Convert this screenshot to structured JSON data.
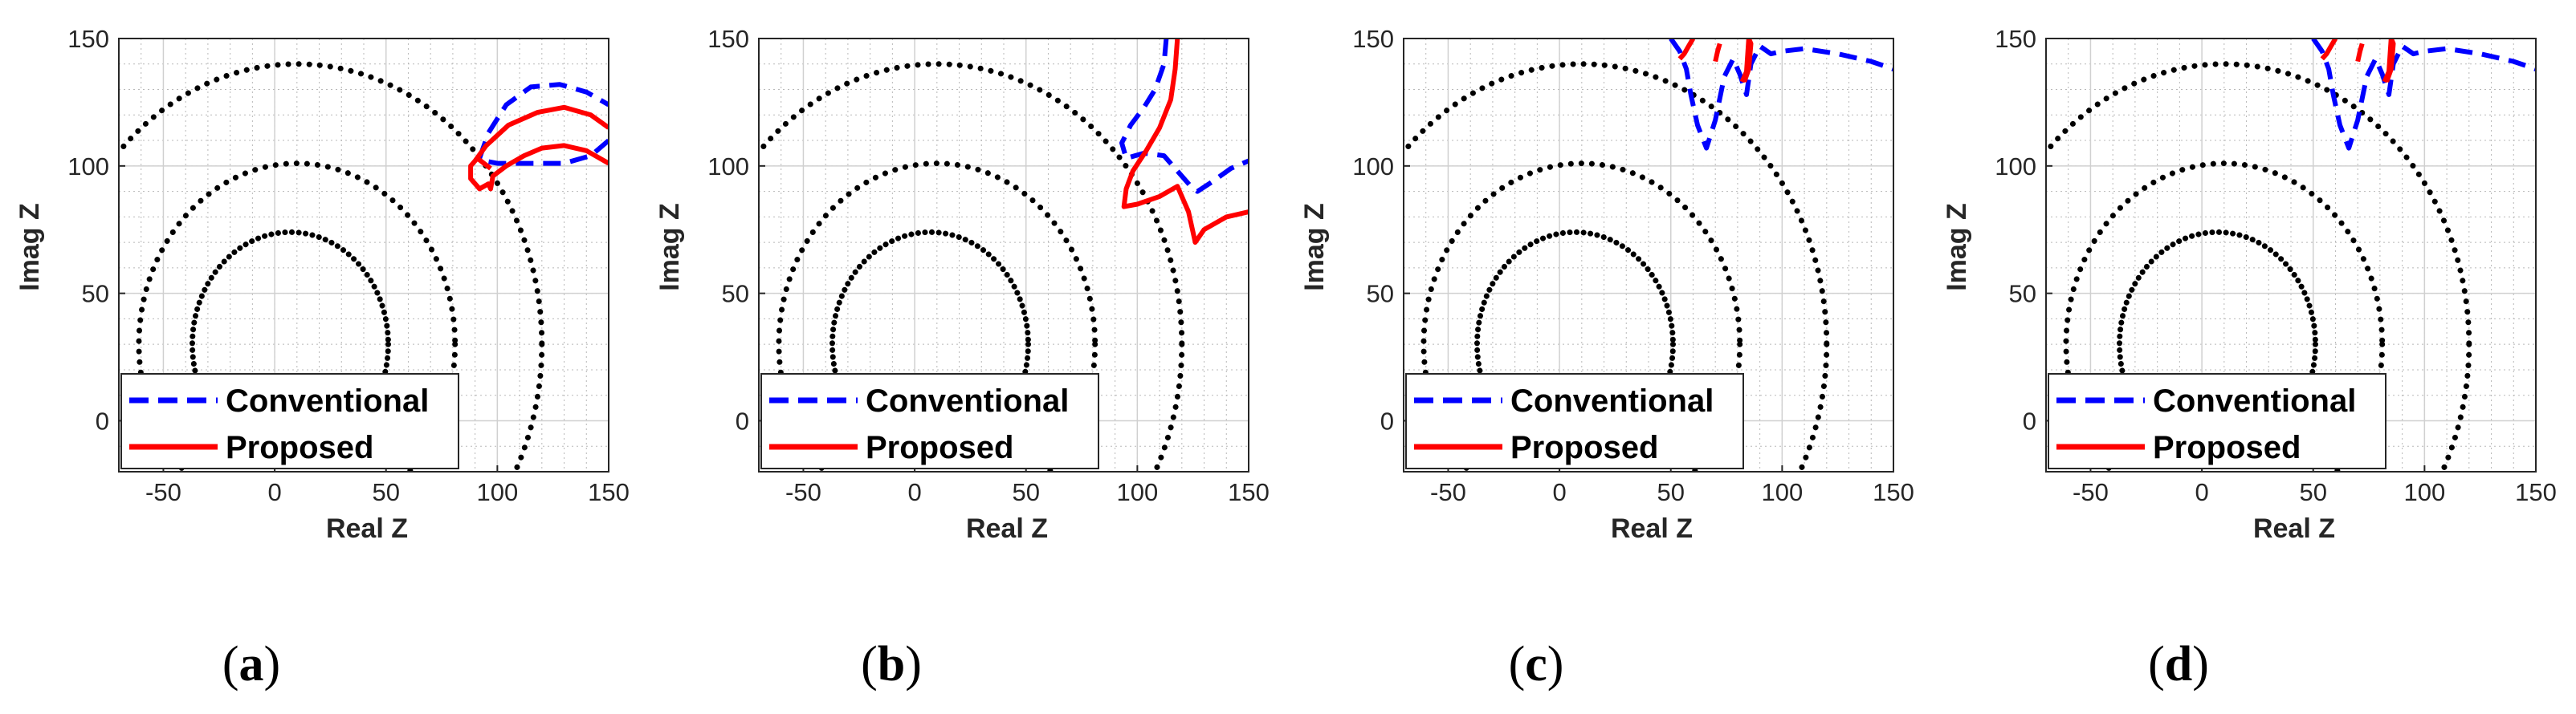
{
  "colors": {
    "conventional": "#0000ff",
    "proposed": "#ff0000",
    "circles": "#000000",
    "grid": "#b8b8b8",
    "axes": "#262626"
  },
  "chart_data": [
    {
      "type": "line",
      "panel_label": "a",
      "xlabel": "Real Z",
      "ylabel": "Imag Z",
      "xlim": [
        -70,
        150
      ],
      "ylim": [
        -20,
        150
      ],
      "xticks": [
        -50,
        0,
        50,
        100,
        150
      ],
      "yticks": [
        0,
        50,
        100,
        150
      ],
      "grid": true,
      "legend": {
        "position": "bottom-left",
        "entries": [
          "Conventional",
          "Proposed"
        ]
      },
      "zones": [
        {
          "name": "zone1",
          "center": [
            7,
            30
          ],
          "radius": 44,
          "style": "solid"
        },
        {
          "name": "zone2",
          "center": [
            10,
            30
          ],
          "radius": 71,
          "style": "dotted"
        },
        {
          "name": "zone3",
          "center": [
            10,
            30
          ],
          "radius": 110,
          "style": "dotted"
        }
      ],
      "series": [
        {
          "name": "Conventional",
          "style": "dashed",
          "x": [
            92,
            96,
            104,
            115,
            128,
            140,
            150,
            null,
            150,
            142,
            130,
            118,
            108,
            100,
            94
          ],
          "y": [
            103,
            113,
            124,
            131,
            132,
            129,
            124,
            null,
            110,
            104,
            101,
            101,
            101,
            101,
            102
          ]
        },
        {
          "name": "Proposed",
          "style": "solid",
          "x": [
            90,
            95,
            105,
            118,
            130,
            142,
            150,
            null,
            150,
            140,
            130,
            120,
            112,
            104,
            98,
            97,
            96,
            92,
            88,
            88,
            91,
            97
          ],
          "y": [
            102,
            108,
            116,
            121,
            123,
            120,
            115,
            null,
            101,
            106,
            108,
            107,
            104,
            100,
            96,
            91,
            93,
            91,
            95,
            100,
            103,
            99
          ]
        }
      ]
    },
    {
      "type": "line",
      "panel_label": "b",
      "xlabel": "Real Z",
      "ylabel": "Imag Z",
      "xlim": [
        -70,
        150
      ],
      "ylim": [
        -20,
        150
      ],
      "xticks": [
        -50,
        0,
        50,
        100,
        150
      ],
      "yticks": [
        0,
        50,
        100,
        150
      ],
      "grid": true,
      "legend": {
        "position": "bottom-left",
        "entries": [
          "Conventional",
          "Proposed"
        ]
      },
      "zones": [
        {
          "name": "zone1",
          "center": [
            7,
            30
          ],
          "radius": 44,
          "style": "solid"
        },
        {
          "name": "zone2",
          "center": [
            10,
            30
          ],
          "radius": 71,
          "style": "dotted"
        },
        {
          "name": "zone3",
          "center": [
            10,
            30
          ],
          "radius": 110,
          "style": "dotted"
        }
      ],
      "series": [
        {
          "name": "Conventional",
          "style": "dashed",
          "x": [
            113,
            112,
            108,
            103,
            97,
            93,
            95,
            103,
            112,
            118,
            124,
            127,
            134,
            142,
            150
          ],
          "y": [
            150,
            140,
            130,
            123,
            116,
            109,
            103,
            105,
            104,
            98,
            92,
            90,
            94,
            99,
            102
          ]
        },
        {
          "name": "Proposed",
          "style": "solid",
          "x": [
            118,
            117,
            115,
            110,
            104,
            98,
            95,
            94,
            100,
            110,
            118,
            123,
            126,
            130,
            140,
            150
          ],
          "y": [
            150,
            138,
            126,
            115,
            106,
            98,
            91,
            84,
            85,
            88,
            92,
            82,
            70,
            75,
            80,
            82
          ]
        }
      ]
    },
    {
      "type": "line",
      "panel_label": "c",
      "xlabel": "Real Z",
      "ylabel": "Imag Z",
      "xlim": [
        -70,
        150
      ],
      "ylim": [
        -20,
        150
      ],
      "xticks": [
        -50,
        0,
        50,
        100,
        150
      ],
      "yticks": [
        0,
        50,
        100,
        150
      ],
      "grid": true,
      "legend": {
        "position": "bottom-left",
        "entries": [
          "Conventional",
          "Proposed"
        ]
      },
      "zones": [
        {
          "name": "zone1",
          "center": [
            7,
            30
          ],
          "radius": 44,
          "style": "solid"
        },
        {
          "name": "zone2",
          "center": [
            10,
            30
          ],
          "radius": 71,
          "style": "dotted"
        },
        {
          "name": "zone3",
          "center": [
            10,
            30
          ],
          "radius": 110,
          "style": "dotted"
        }
      ],
      "series": [
        {
          "name": "Conventional",
          "style": "dashed",
          "x": [
            50,
            54,
            57,
            59,
            62,
            66,
            70,
            74,
            78,
            81,
            84,
            86,
            90,
            95,
            100,
            110,
            125,
            140,
            150
          ],
          "y": [
            150,
            145,
            138,
            128,
            116,
            107,
            118,
            135,
            142,
            136,
            128,
            140,
            147,
            144,
            145,
            146,
            144,
            141,
            138
          ]
        },
        {
          "name": "Proposed",
          "style": "solid",
          "x": [
            54,
            56,
            58,
            60,
            null,
            70,
            71,
            72,
            null,
            82,
            84,
            85,
            86,
            85,
            83
          ],
          "y": [
            142,
            144,
            147,
            150,
            null,
            141,
            145,
            148,
            null,
            133,
            137,
            150,
            148,
            138,
            133
          ]
        }
      ]
    },
    {
      "type": "line",
      "panel_label": "d",
      "xlabel": "Real Z",
      "ylabel": "Imag Z",
      "xlim": [
        -70,
        150
      ],
      "ylim": [
        -20,
        150
      ],
      "xticks": [
        -50,
        0,
        50,
        100,
        150
      ],
      "yticks": [
        0,
        50,
        100,
        150
      ],
      "grid": true,
      "legend": {
        "position": "bottom-left",
        "entries": [
          "Conventional",
          "Proposed"
        ]
      },
      "zones": [
        {
          "name": "zone1",
          "center": [
            7,
            30
          ],
          "radius": 44,
          "style": "solid"
        },
        {
          "name": "zone2",
          "center": [
            10,
            30
          ],
          "radius": 71,
          "style": "dotted"
        },
        {
          "name": "zone3",
          "center": [
            10,
            30
          ],
          "radius": 110,
          "style": "dotted"
        }
      ],
      "series": [
        {
          "name": "Conventional",
          "style": "dashed",
          "x": [
            50,
            54,
            57,
            59,
            62,
            66,
            70,
            74,
            78,
            81,
            84,
            86,
            90,
            95,
            100,
            110,
            125,
            140,
            150
          ],
          "y": [
            150,
            145,
            138,
            128,
            116,
            107,
            118,
            135,
            142,
            136,
            128,
            140,
            147,
            144,
            145,
            146,
            144,
            141,
            138
          ]
        },
        {
          "name": "Proposed",
          "style": "solid",
          "x": [
            54,
            56,
            58,
            60,
            null,
            70,
            71,
            72,
            null,
            82,
            84,
            85,
            86,
            85,
            83
          ],
          "y": [
            142,
            144,
            147,
            150,
            null,
            141,
            145,
            148,
            null,
            133,
            137,
            150,
            148,
            138,
            133
          ]
        }
      ]
    }
  ]
}
